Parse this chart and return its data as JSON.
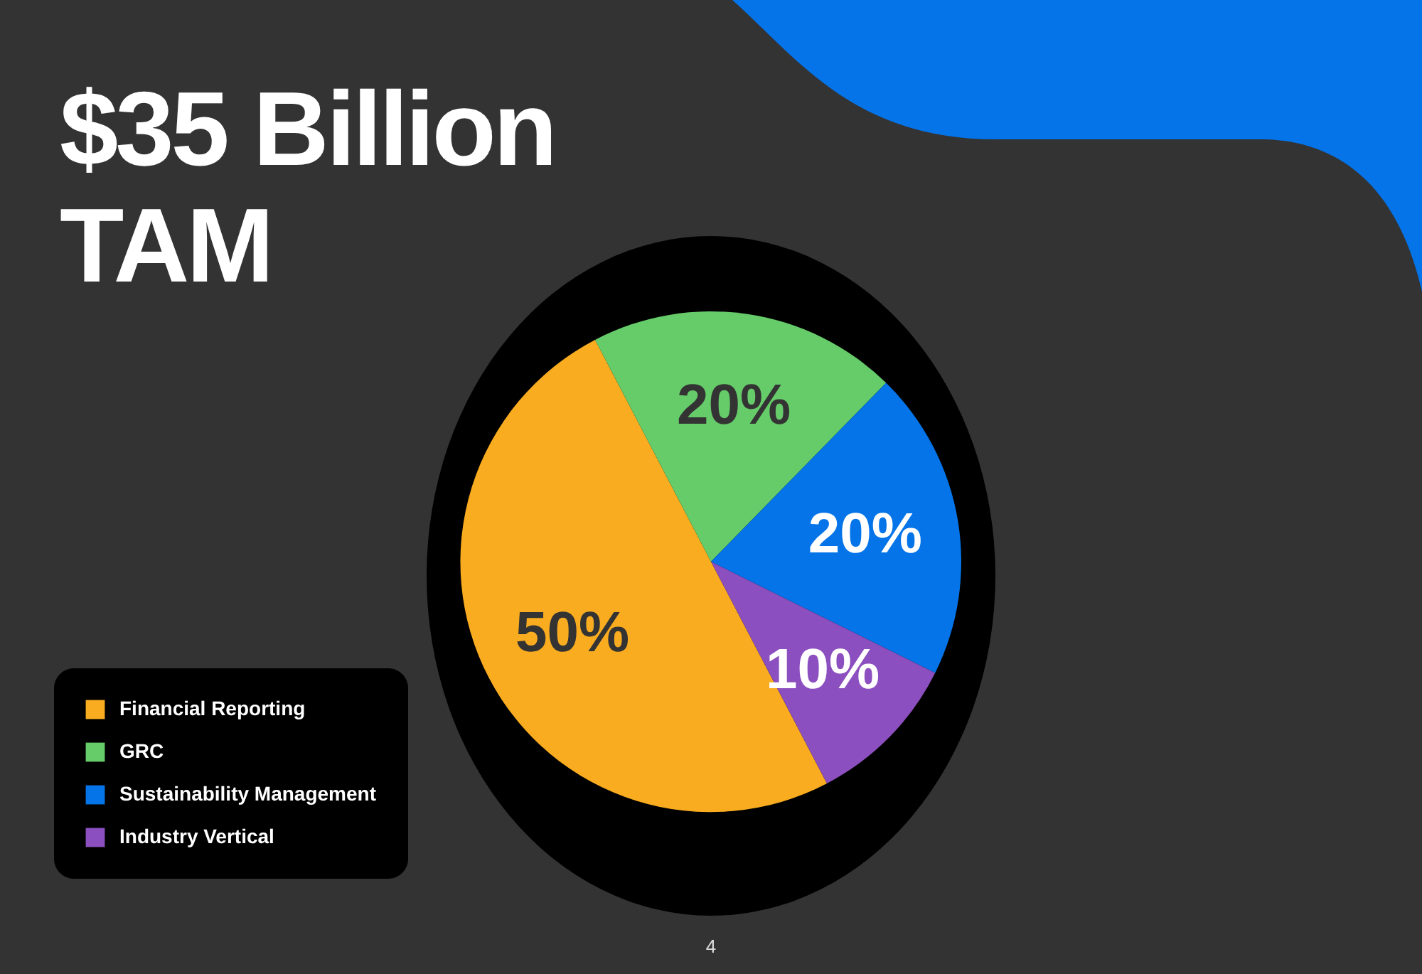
{
  "chart_data": {
    "type": "pie",
    "title": "$35 Billion TAM",
    "categories": [
      "Financial Reporting",
      "GRC",
      "Sustainability Management",
      "Industry Vertical"
    ],
    "values": [
      50,
      20,
      20,
      10
    ],
    "colors": [
      "#f9ac1f",
      "#66cc6a",
      "#0474e8",
      "#8c4fbf"
    ],
    "value_labels": [
      "50%",
      "20%",
      "20%",
      "10%"
    ],
    "legend": "bottom left",
    "annotations": [
      "4"
    ]
  }
}
